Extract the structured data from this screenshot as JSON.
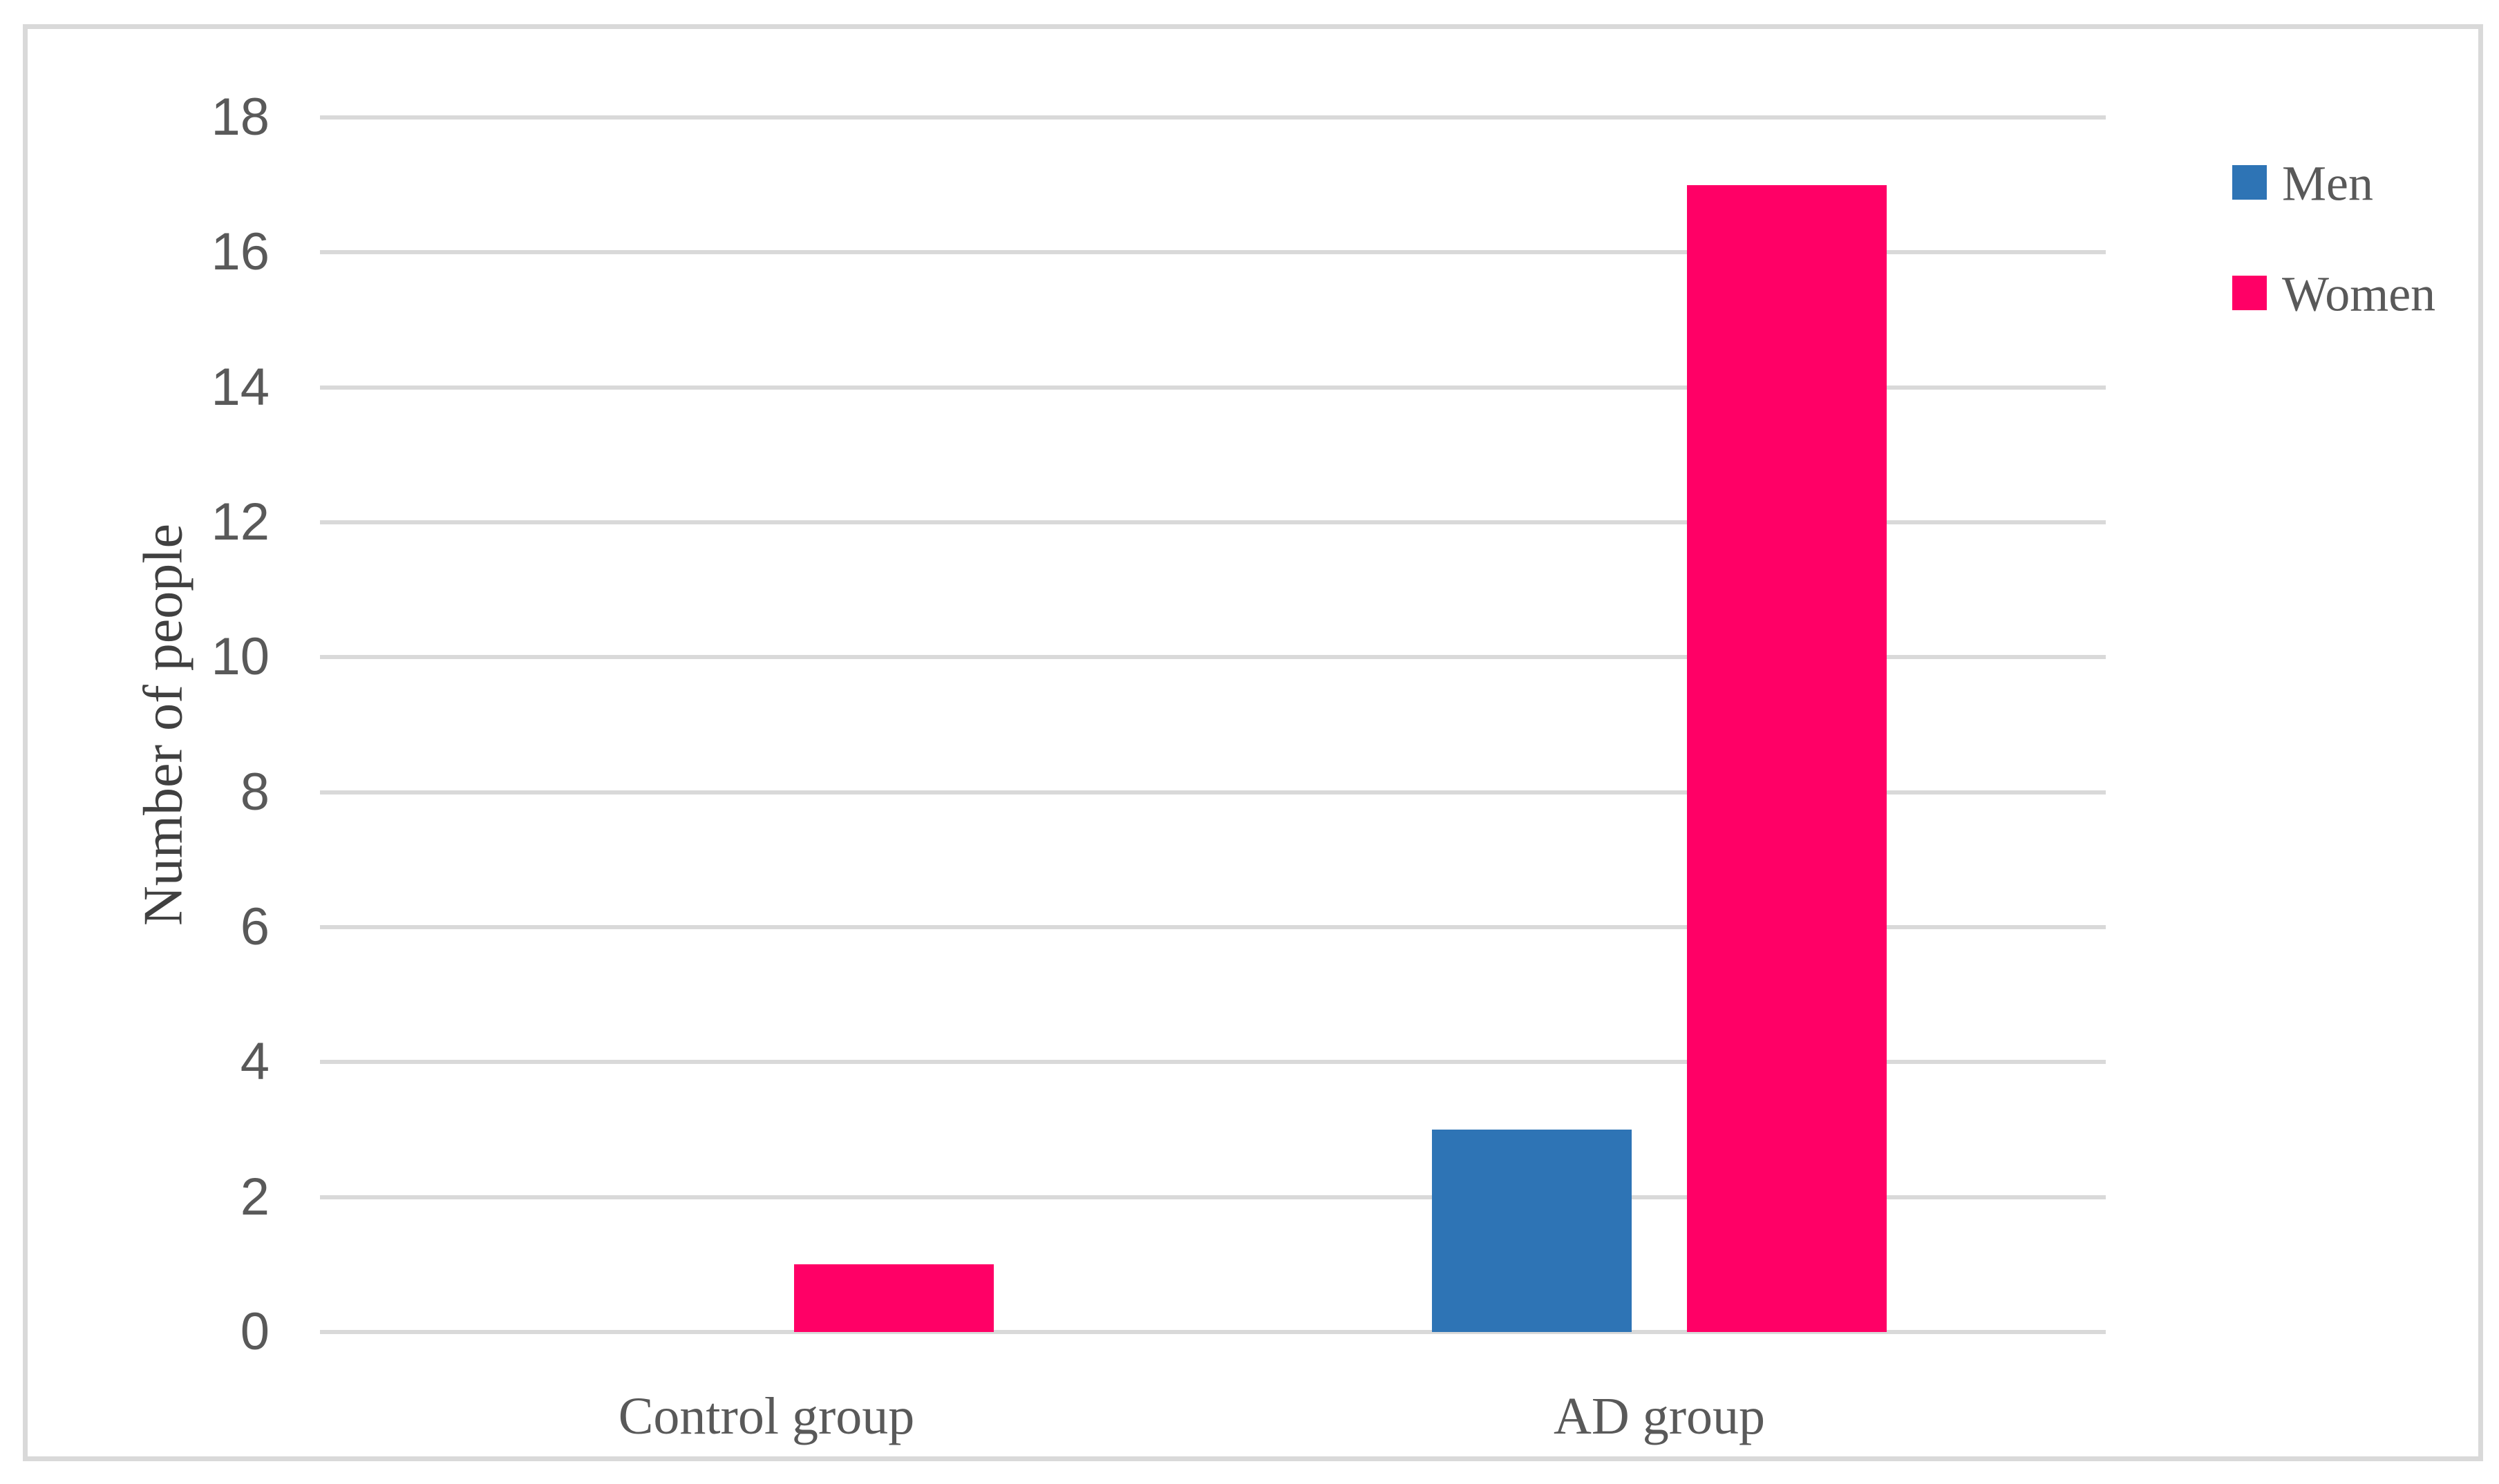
{
  "chart_data": {
    "type": "bar",
    "title": "",
    "categories": [
      "Control group",
      "AD group"
    ],
    "series": [
      {
        "name": "Men",
        "color": "#2E74B5",
        "values": [
          0,
          3
        ]
      },
      {
        "name": "Women",
        "color": "#FF0066",
        "values": [
          1,
          17
        ]
      }
    ],
    "xlabel": "",
    "ylabel": "Number of people",
    "ylim": [
      0,
      18
    ],
    "yticks": [
      0,
      2,
      4,
      6,
      8,
      10,
      12,
      14,
      16,
      18
    ],
    "grid": true,
    "legend_position": "upper-right",
    "colors": {
      "gridline": "#D9D9D9",
      "frame_border": "#D9D9D9",
      "tick_labels": "#595959",
      "category_labels": "#595959",
      "legend_text": "#595959",
      "axis_title": "#404040",
      "background": "#FFFFFF"
    }
  }
}
